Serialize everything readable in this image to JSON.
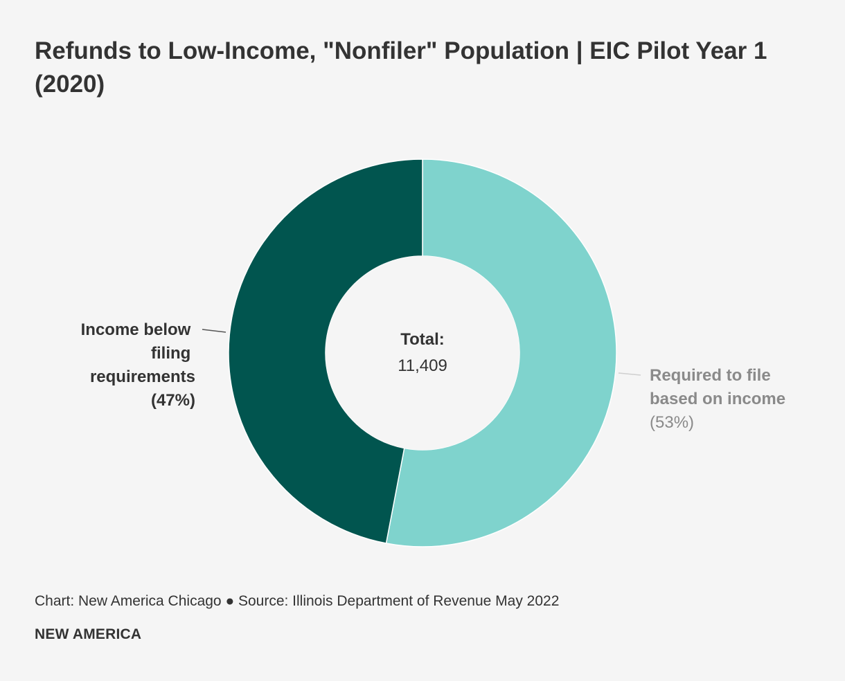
{
  "chart_data": {
    "type": "pie",
    "title": "Refunds to Low-Income, \"Nonfiler\" Population | EIC Pilot Year 1 (2020)",
    "donut": true,
    "center_label": "Total:",
    "center_value": "11,409",
    "slices": [
      {
        "name_lines": [
          "Required to file",
          "based on income"
        ],
        "percent_label": "(53%)",
        "value": 53,
        "color": "#7fd3cd",
        "label_color": "#8a8a8a"
      },
      {
        "name_lines": [
          "Income below",
          "filing",
          "requirements"
        ],
        "percent_label": "(47%)",
        "value": 47,
        "color": "#01554f",
        "label_color": "#333333"
      }
    ]
  },
  "footer": {
    "source": "Chart: New America Chicago ● Source: Illinois Department of Revenue May 2022",
    "brand": "NEW AMERICA"
  }
}
